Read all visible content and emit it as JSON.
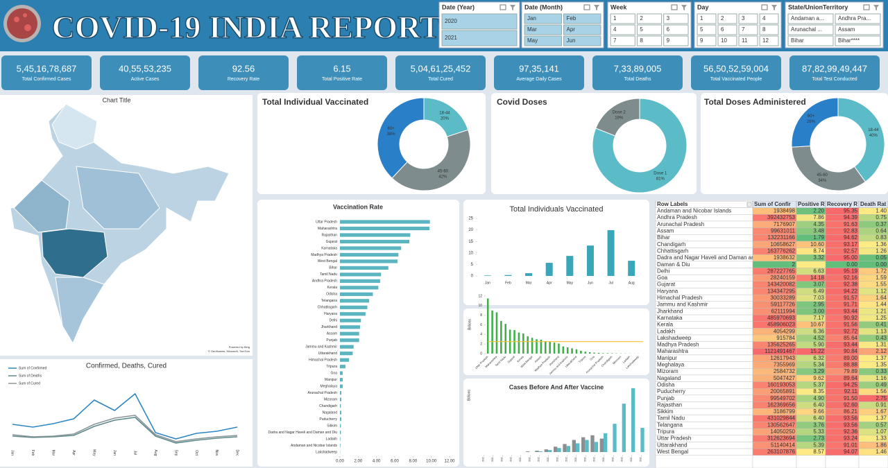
{
  "header": {
    "title": "COVID-19 INDIA REPORT"
  },
  "slicers": [
    {
      "title": "Date (Year)",
      "items": [
        "2020",
        "2021"
      ]
    },
    {
      "title": "Date (Month)",
      "items": [
        "Jan",
        "Feb",
        "Mar",
        "Apr",
        "May",
        "Jun"
      ]
    },
    {
      "title": "Week",
      "items": [
        "1",
        "2",
        "3",
        "4",
        "5",
        "6",
        "7",
        "8",
        "9"
      ]
    },
    {
      "title": "Day",
      "items": [
        "1",
        "2",
        "3",
        "4",
        "5",
        "6",
        "7",
        "8",
        "9",
        "10",
        "11",
        "12"
      ]
    },
    {
      "title": "State/UnionTerritory",
      "items": [
        "Andaman a...",
        "Andhra Pra...",
        "Arunachal ...",
        "Assam",
        "Bihar",
        "Bihar****"
      ]
    }
  ],
  "kpis": [
    {
      "value": "5,45,16,78,687",
      "label": "Total Confirmed Cases"
    },
    {
      "value": "40,55,53,235",
      "label": "Active Cases"
    },
    {
      "value": "92.56",
      "label": "Recovery Rate"
    },
    {
      "value": "6.15",
      "label": "Total Positive Rate"
    },
    {
      "value": "5,04,61,25,452",
      "label": "Total Cured"
    },
    {
      "value": "97,35,141",
      "label": "Average Daily Cases"
    },
    {
      "value": "7,33,89,005",
      "label": "Total Deaths"
    },
    {
      "value": "56,50,52,59,004",
      "label": "Total Vaccinated People"
    },
    {
      "value": "87,82,99,49,447",
      "label": "Total Test Conducted"
    }
  ],
  "map": {
    "title": "Chart Title",
    "powered": "Powered by Bing",
    "credit": "© GeoNames, Microsoft, TomTom"
  },
  "charts": {
    "trend": {
      "type": "line",
      "title": "Confirmed, Deaths, Cured",
      "categories": [
        "Jan",
        "Feb",
        "Mar",
        "Apr",
        "May",
        "Jun",
        "Jul",
        "Aug",
        "Sep",
        "Oct",
        "Nov",
        "Dec"
      ],
      "ylim": [
        0,
        120
      ],
      "series": [
        {
          "name": "Sum of Confirmed",
          "color": "#2e86c1",
          "values": [
            48,
            44,
            49,
            56,
            83,
            68,
            92,
            36,
            27,
            35,
            38,
            44
          ]
        },
        {
          "name": "Sum of Deaths",
          "color": "#5d8a8a",
          "values": [
            31,
            29,
            30,
            32,
            45,
            54,
            58,
            31,
            21,
            25,
            28,
            30
          ]
        },
        {
          "name": "Sum of Cured",
          "color": "#8a9699",
          "values": [
            33,
            30,
            31,
            34,
            48,
            57,
            61,
            33,
            23,
            27,
            30,
            32
          ]
        }
      ]
    },
    "vacc_individual": {
      "type": "pie",
      "title": "Total Individual Vaccinated",
      "categories": [
        "18-44",
        "45-60",
        "60+"
      ],
      "values": [
        20,
        42,
        38
      ],
      "value_labels": [
        "20%",
        "42%",
        "38%"
      ],
      "colors": [
        "#5bbcc8",
        "#7f8c8d",
        "#2a7fc9"
      ]
    },
    "doses": {
      "type": "pie",
      "title": "Covid Doses",
      "categories": [
        "Dose 1",
        "Dose 2"
      ],
      "values": [
        81,
        19
      ],
      "value_labels": [
        "81%",
        "19%"
      ],
      "colors": [
        "#5bbcc8",
        "#7f8c8d"
      ]
    },
    "doses_admin": {
      "type": "pie",
      "title": "Total Doses Administered",
      "categories": [
        "18-44",
        "45-60",
        "60+"
      ],
      "values": [
        40,
        34,
        26
      ],
      "value_labels": [
        "40%",
        "34%",
        "26%"
      ],
      "colors": [
        "#5bbcc8",
        "#7f8c8d",
        "#2a7fc9"
      ]
    },
    "vacc_rate": {
      "type": "hbar",
      "title": "Vaccination Rate",
      "categories": [
        "Uttar Pradesh",
        "Maharashtra",
        "Rajasthan",
        "Gujarat",
        "Karnataka",
        "Madhya Pradesh",
        "West Bengal",
        "Bihar",
        "Tamil Nadu",
        "Andhra Pradesh",
        "Kerala",
        "Odisha",
        "Telangana",
        "Chhattisgarh",
        "Haryana",
        "Delhi",
        "Jharkhand",
        "Assam",
        "Punjab",
        "Jammu and Kashmir",
        "Uttarakhand",
        "Himachal Pradesh",
        "Tripura",
        "Goa",
        "Manipur",
        "Meghalaya",
        "Arunachal Pradesh",
        "Mizoram",
        "Chandigarh",
        "Nagaland",
        "Puducherry",
        "Sikkim",
        "Dadra and Nagar Haveli and Daman and Diu",
        "Ladakh",
        "Andaman and Nicobar Islands",
        "Lakshadweep"
      ],
      "values": [
        9.85,
        9.8,
        7.7,
        7.6,
        6.7,
        6.4,
        6.3,
        5.3,
        4.5,
        4.4,
        4.2,
        3.6,
        3.2,
        3.0,
        2.8,
        2.3,
        2.2,
        2.1,
        2.1,
        1.5,
        1.4,
        1.0,
        0.6,
        0.3,
        0.3,
        0.3,
        0.15,
        0.15,
        0.1,
        0.15,
        0.15,
        0.1,
        0.1,
        0.05,
        0.05,
        0.02
      ],
      "xlim": [
        0,
        12
      ],
      "xticks": [
        {
          "value": 0,
          "label": "0.00"
        },
        {
          "value": 2,
          "label": "2.00"
        },
        {
          "value": 4,
          "label": "4.00"
        },
        {
          "value": 6,
          "label": "6.00"
        },
        {
          "value": 8,
          "label": "8.00"
        },
        {
          "value": 10,
          "label": "10.00"
        },
        {
          "value": 12,
          "label": "12.00"
        }
      ],
      "color": "#5bb5c0"
    },
    "individuals": {
      "type": "bar",
      "title": "Total Individuals Vaccinated",
      "categories": [
        "Jan",
        "Feb",
        "Mar",
        "Apr",
        "May",
        "Jun",
        "Jul",
        "Aug"
      ],
      "values": [
        0.2,
        0.4,
        1.2,
        5.7,
        8.7,
        13.2,
        19.9,
        6.6
      ],
      "ylim": [
        0,
        25
      ],
      "yticks": [
        0,
        5,
        10,
        15,
        20,
        25
      ],
      "color": "#3aa6b9"
    },
    "states_combo": {
      "type": "combo",
      "ylabel": "Billions",
      "categories": [
        "Uttar Pradesh",
        null,
        "Maharashtra",
        null,
        "Tamil Nadu",
        null,
        "Gujarat",
        null,
        "Kerala",
        null,
        "West Bengal",
        null,
        "Assam",
        null,
        "Madhya Pradesh",
        null,
        "Jharkhand",
        null,
        "Jammu and Kashmir",
        null,
        "Uttarakhand",
        null,
        "Tripura",
        null,
        "Goa",
        null,
        "Arunachal Pradesh",
        null,
        "Chandigarh",
        null,
        "Mizoram",
        null,
        "Ladakh",
        null,
        "Lakshadweep",
        null
      ],
      "ylim": [
        0,
        12
      ],
      "yticks": [
        0,
        2,
        4,
        6,
        8,
        10,
        12
      ],
      "series": [
        {
          "type": "bar",
          "color": "#3fae49",
          "values": [
            11.5,
            9,
            8.6,
            6.8,
            6.2,
            5,
            4.9,
            4.4,
            4.2,
            3.6,
            3.3,
            3,
            2.9,
            2.6,
            2.5,
            2.3,
            2.1,
            1.5,
            1.3,
            1.1,
            0.9,
            0.6,
            0.4,
            0.3,
            0.2,
            0.15,
            0.1,
            0.1,
            0.08,
            0.06,
            0.05,
            0.04,
            0.03,
            0.02,
            0.02,
            0.01
          ]
        },
        {
          "type": "line",
          "color": "#f2c12e",
          "values": [
            2.5,
            2.5,
            2.5,
            2.5,
            2.5,
            2.5,
            2.5,
            2.5,
            2.5,
            2.5,
            2.5,
            2.5,
            2.5,
            2.5,
            2.5,
            2.5,
            2.5,
            2.5,
            2.5,
            2.5,
            2.5,
            2.5,
            2.5,
            2.5,
            2.5,
            2.5,
            2.5,
            2.5,
            2.5,
            2.5,
            2.5,
            2.5,
            2.5,
            2.5,
            2.5,
            2.5
          ]
        }
      ]
    },
    "before_after": {
      "type": "grouped",
      "title": "Cases Before And After Vaccine",
      "ylabel": "Billions",
      "categories": [
        "202...",
        "202...",
        "202...",
        "202...",
        "202...",
        "202...",
        "202...",
        "202...",
        "202...",
        "202...",
        "202...",
        "202...",
        "202...",
        "202...",
        "202...",
        "202...",
        "202...",
        "202..."
      ],
      "ylim": [
        0,
        100
      ],
      "series": [
        {
          "color": "#8a8f91",
          "values": [
            0,
            0,
            0,
            0,
            0,
            1,
            2,
            4,
            8,
            12,
            18,
            22,
            25,
            20,
            0,
            0,
            0,
            0
          ]
        },
        {
          "color": "#5bbcc8",
          "values": [
            0,
            0,
            0,
            0,
            0,
            0,
            1,
            3,
            6,
            9,
            13,
            18,
            15,
            28,
            42,
            72,
            95,
            36
          ]
        }
      ]
    }
  },
  "table": {
    "header": [
      "Row Labels",
      "Sum of Confir",
      "Positive R",
      "Recovery R",
      "Death Rat"
    ],
    "rows": [
      [
        "Andaman and Nicobar Islands",
        "1938498",
        "2.20",
        "95.35",
        "1.40"
      ],
      [
        "Andhra Pradesh",
        "392432753",
        "7.86",
        "94.39",
        "0.75"
      ],
      [
        "Arunachal Pradesh",
        "7176907",
        "4.35",
        "91.63",
        "0.37"
      ],
      [
        "Assam",
        "99631011",
        "3.48",
        "92.83",
        "0.64"
      ],
      [
        "Bihar",
        "132231166",
        "1.79",
        "94.62",
        "0.83"
      ],
      [
        "Chandigarh",
        "10658627",
        "10.60",
        "93.17",
        "1.36"
      ],
      [
        "Chhattisgarh",
        "163776262",
        "8.74",
        "92.57",
        "1.26"
      ],
      [
        "Dadra and Nagar Haveli and Daman an",
        "1938632",
        "3.32",
        "95.00",
        "0.05"
      ],
      [
        "Daman & Diu",
        "2",
        null,
        "0.00",
        "0.00"
      ],
      [
        "Delhi",
        "287227765",
        "6.63",
        "95.19",
        "1.72"
      ],
      [
        "Goa",
        "28240159",
        "14.18",
        "92.16",
        "1.59"
      ],
      [
        "Gujarat",
        "143420082",
        "3.07",
        "92.38",
        "1.55"
      ],
      [
        "Haryana",
        "134347295",
        "6.49",
        "94.22",
        "1.12"
      ],
      [
        "Himachal Pradesh",
        "30033289",
        "7.03",
        "91.57",
        "1.64"
      ],
      [
        "Jammu and Kashmir",
        "59117726",
        "2.95",
        "91.71",
        "1.44"
      ],
      [
        "Jharkhand",
        "62111994",
        "3.00",
        "93.44",
        "1.21"
      ],
      [
        "Karnataka",
        "485970693",
        "7.17",
        "90.92",
        "1.25"
      ],
      [
        "Kerala",
        "458906023",
        "10.67",
        "91.56",
        "0.41"
      ],
      [
        "Ladakh",
        "4054299",
        "6.36",
        "92.72",
        "1.13"
      ],
      [
        "Lakshadweep",
        "915784",
        "4.52",
        "85.64",
        "0.43"
      ],
      [
        "Madhya Pradesh",
        "135625265",
        "5.90",
        "93.44",
        "1.31"
      ],
      [
        "Maharashtra",
        "1121491467",
        "15.22",
        "90.84",
        "2.12"
      ],
      [
        "Manipur",
        "12617943",
        "6.32",
        "89.00",
        "1.37"
      ],
      [
        "Meghalaya",
        "7355969",
        "5.34",
        "88.88",
        "1.35"
      ],
      [
        "Mizoram",
        "2584732",
        "3.29",
        "79.89",
        "0.33"
      ],
      [
        "Nagaland",
        "5047427",
        "9.62",
        "89.64",
        "1.16"
      ],
      [
        "Odisha",
        "160193053",
        "5.37",
        "94.25",
        "0.49"
      ],
      [
        "Puducherry",
        "20065891",
        "8.35",
        "92.11",
        "1.56"
      ],
      [
        "Punjab",
        "99549702",
        "4.90",
        "91.50",
        "2.75"
      ],
      [
        "Rajasthan",
        "162369656",
        "6.40",
        "92.60",
        "0.91"
      ],
      [
        "Sikkim",
        "3186799",
        "9.66",
        "86.21",
        "1.67"
      ],
      [
        "Tamil Nadu",
        "431029844",
        "6.40",
        "93.56",
        "1.37"
      ],
      [
        "Telangana",
        "130562647",
        "3.76",
        "93.56",
        "0.57"
      ],
      [
        "Tripura",
        "14050250",
        "5.33",
        "92.36",
        "1.07"
      ],
      [
        "Uttar Pradesh",
        "312623694",
        "2.73",
        "93.24",
        "1.33"
      ],
      [
        "Uttarakhand",
        "51140414",
        "5.39",
        "91.01",
        "1.86"
      ],
      [
        "West Bengal",
        "263107876",
        "8.57",
        "94.07",
        "1.46"
      ]
    ]
  }
}
